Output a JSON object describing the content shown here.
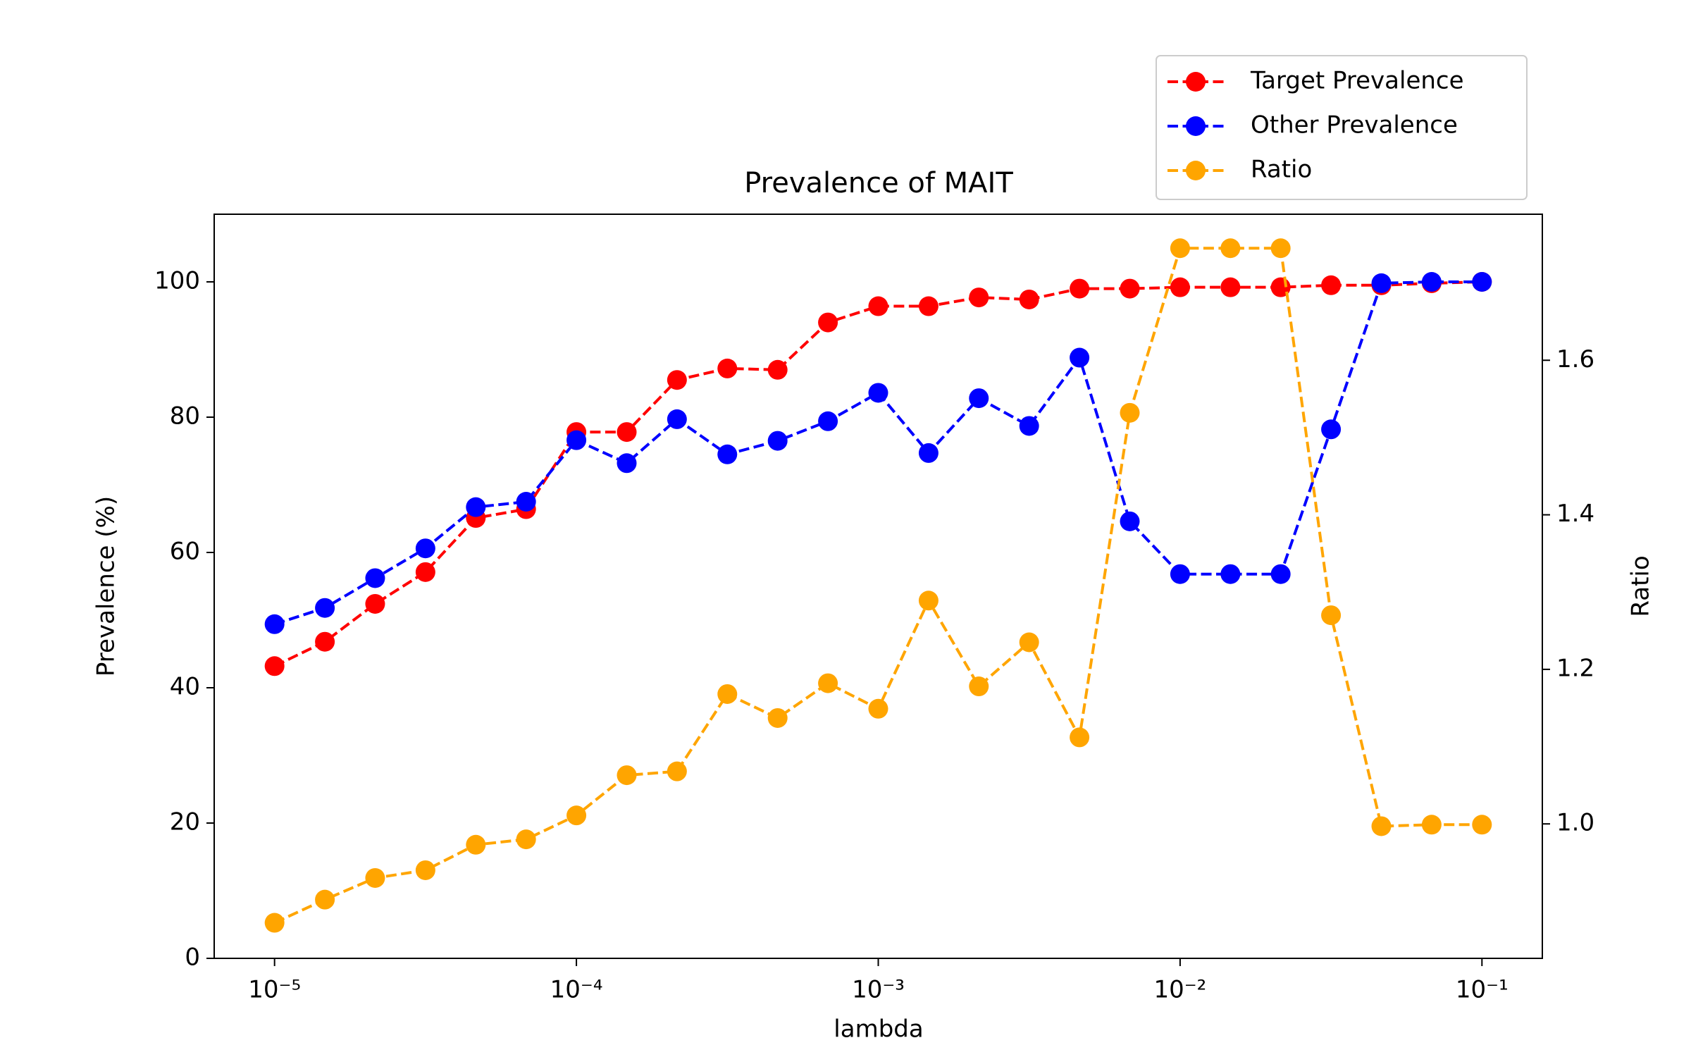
{
  "chart_data": {
    "type": "line",
    "title": "Prevalence of MAIT",
    "xlabel": "lambda",
    "ylabel": "Prevalence (%)",
    "y2label": "Ratio",
    "xscale": "log",
    "grid": false,
    "legend": "upper right",
    "x": [
      1e-05,
      1.468e-05,
      2.154e-05,
      3.162e-05,
      4.642e-05,
      6.813e-05,
      0.0001,
      0.0001468,
      0.0002154,
      0.0003162,
      0.0004642,
      0.0006813,
      0.001,
      0.001468,
      0.002154,
      0.003162,
      0.004642,
      0.006813,
      0.01,
      0.01468,
      0.02154,
      0.03162,
      0.04642,
      0.06813,
      0.1
    ],
    "xlim": [
      6.31e-06,
      0.1585
    ],
    "xticks": [
      {
        "value": 1e-05,
        "label": "10⁻⁵"
      },
      {
        "value": 0.0001,
        "label": "10⁻⁴"
      },
      {
        "value": 0.001,
        "label": "10⁻³"
      },
      {
        "value": 0.01,
        "label": "10⁻²"
      },
      {
        "value": 0.1,
        "label": "10⁻¹"
      }
    ],
    "ylim": [
      0,
      110
    ],
    "yticks": [
      0,
      20,
      40,
      60,
      80,
      100
    ],
    "y2lim": [
      0.826,
      1.789
    ],
    "y2ticks": [
      {
        "value": 1,
        "label": "1.0"
      },
      1.2,
      1.4,
      1.6
    ],
    "series": [
      {
        "name": "Target Prevalence",
        "color": "#ff0000",
        "values": [
          43.2,
          46.8,
          52.4,
          57.1,
          65.1,
          66.4,
          77.8,
          77.8,
          85.5,
          87.2,
          87.0,
          94.0,
          96.4,
          96.4,
          97.7,
          97.4,
          99.0,
          99.0,
          99.2,
          99.2,
          99.2,
          99.5,
          99.5,
          99.8,
          100
        ]
      },
      {
        "name": "Other Prevalence",
        "color": "#0000ff",
        "values": [
          49.4,
          51.8,
          56.2,
          60.6,
          66.7,
          67.5,
          76.6,
          73.2,
          79.7,
          74.5,
          76.5,
          79.4,
          83.6,
          74.7,
          82.8,
          78.7,
          88.8,
          64.6,
          56.8,
          56.8,
          56.8,
          78.2,
          99.8,
          100,
          100
        ]
      },
      {
        "name": "Ratio",
        "color": "#ffa500",
        "axis": "y2",
        "values": [
          0.872,
          0.902,
          0.93,
          0.94,
          0.973,
          0.98,
          1.011,
          1.063,
          1.068,
          1.168,
          1.137,
          1.182,
          1.149,
          1.289,
          1.178,
          1.235,
          1.112,
          1.532,
          1.745,
          1.745,
          1.745,
          1.27,
          0.997,
          0.999,
          0.999
        ]
      }
    ]
  }
}
